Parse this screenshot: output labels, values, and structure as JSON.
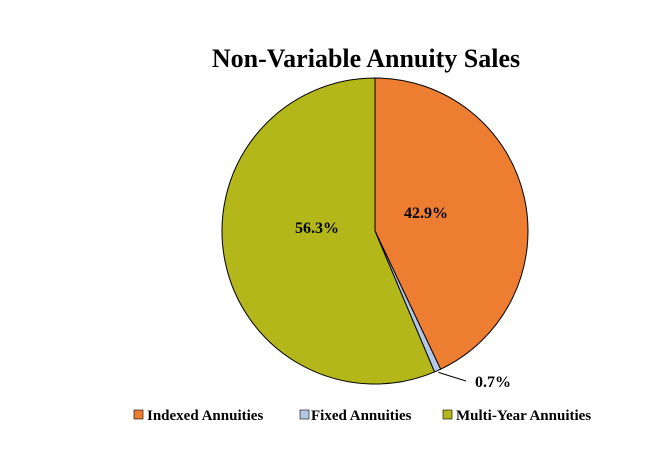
{
  "chart_data": {
    "type": "pie",
    "title": "Non-Variable Annuity Sales",
    "slices": [
      {
        "name": "Indexed Annuities",
        "value": 42.9,
        "label": "42.9%",
        "color": "#ED7D31"
      },
      {
        "name": "Fixed Annuities",
        "value": 0.7,
        "label": "0.7%",
        "color": "#B4C7E7"
      },
      {
        "name": "Multi-Year Annuities",
        "value": 56.3,
        "label": "56.3%",
        "color": "#B3B71A"
      }
    ],
    "start_angle": "12 o'clock",
    "direction": "clockwise",
    "legend_position": "bottom"
  }
}
